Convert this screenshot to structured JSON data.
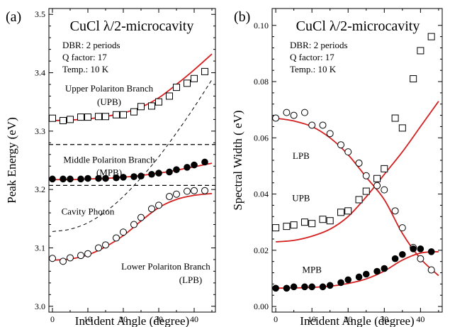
{
  "chart_data": [
    {
      "panel_label": "(a)",
      "type": "scatter",
      "title": "CuCl λ/2-microcavity",
      "info_lines": [
        "DBR: 2 periods",
        "Q factor: 17",
        "Temp.: 10 K"
      ],
      "xlabel": "Incident Angle (degree)",
      "ylabel": "Peak Energy (eV)",
      "xlim": [
        -1,
        46
      ],
      "ylim": [
        2.99,
        3.51
      ],
      "x_ticks": [
        0,
        10,
        20,
        30,
        40
      ],
      "y_ticks": [
        3.0,
        3.1,
        3.2,
        3.3,
        3.4,
        3.5
      ],
      "y_tick_labels": [
        "3.0",
        "3.1",
        "3.2",
        "3.3",
        "3.4",
        "3.5"
      ],
      "colors": {
        "fit": "#d42020",
        "marker": "#000000"
      },
      "series": [
        {
          "name": "Upper Polariton Branch (UPB)",
          "marker": "open-square",
          "x": [
            0,
            3,
            5,
            8,
            10,
            13,
            15,
            18,
            20,
            23,
            25,
            28,
            30,
            33,
            35,
            38,
            40,
            43
          ],
          "y": [
            3.322,
            3.318,
            3.32,
            3.324,
            3.324,
            3.325,
            3.325,
            3.328,
            3.328,
            3.333,
            3.342,
            3.343,
            3.35,
            3.36,
            3.375,
            3.382,
            3.39,
            3.402
          ]
        },
        {
          "name": "Middle Polariton Branch (MPB)",
          "marker": "filled-circle",
          "x": [
            0,
            3,
            5,
            8,
            10,
            13,
            15,
            18,
            20,
            23,
            25,
            28,
            30,
            33,
            35,
            38,
            40,
            43
          ],
          "y": [
            3.218,
            3.218,
            3.218,
            3.218,
            3.219,
            3.219,
            3.219,
            3.22,
            3.221,
            3.222,
            3.223,
            3.226,
            3.228,
            3.23,
            3.234,
            3.238,
            3.242,
            3.247
          ]
        },
        {
          "name": "Lower Polariton Branch (LPB)",
          "marker": "open-circle",
          "x": [
            0,
            3,
            5,
            8,
            10,
            13,
            15,
            18,
            20,
            23,
            25,
            28,
            30,
            33,
            35,
            38,
            40,
            43
          ],
          "y": [
            3.082,
            3.077,
            3.083,
            3.087,
            3.09,
            3.1,
            3.105,
            3.117,
            3.127,
            3.14,
            3.152,
            3.167,
            3.173,
            3.188,
            3.192,
            3.197,
            3.198,
            3.198
          ]
        }
      ],
      "fit_curves": [
        {
          "x": [
            0,
            5,
            10,
            15,
            20,
            25,
            30,
            35,
            40,
            45
          ],
          "y": [
            3.318,
            3.319,
            3.321,
            3.325,
            3.331,
            3.341,
            3.357,
            3.38,
            3.405,
            3.432
          ]
        },
        {
          "x": [
            0,
            5,
            10,
            15,
            20,
            25,
            30,
            35,
            40,
            45
          ],
          "y": [
            3.217,
            3.217,
            3.218,
            3.219,
            3.221,
            3.224,
            3.228,
            3.233,
            3.239,
            3.245
          ]
        },
        {
          "x": [
            0,
            5,
            10,
            15,
            20,
            25,
            30,
            35,
            40,
            45
          ],
          "y": [
            3.079,
            3.081,
            3.088,
            3.102,
            3.121,
            3.146,
            3.169,
            3.183,
            3.19,
            3.193
          ]
        }
      ],
      "dashed_curves": [
        {
          "name": "Cavity Photon",
          "x": [
            0,
            5,
            10,
            15,
            20,
            25,
            30,
            35,
            40,
            45
          ],
          "y": [
            3.128,
            3.132,
            3.143,
            3.162,
            3.188,
            3.22,
            3.256,
            3.297,
            3.341,
            3.388
          ]
        }
      ],
      "hlines": [
        3.277,
        3.207
      ],
      "annotations": [
        {
          "text": "Upper Polariton Branch",
          "x": 16,
          "y": 3.368
        },
        {
          "text": "(UPB)",
          "x": 16,
          "y": 3.345
        },
        {
          "text": "Middle Polariton Branch",
          "x": 16,
          "y": 3.246
        },
        {
          "text": "(MPB)",
          "x": 16,
          "y": 3.224
        },
        {
          "text": "Cavity Photon",
          "x": 10,
          "y": 3.157
        },
        {
          "text": "Lower Polariton Branch",
          "x": 32,
          "y": 3.063
        },
        {
          "text": "(LPB)",
          "x": 39,
          "y": 3.04
        }
      ]
    },
    {
      "panel_label": "(b)",
      "type": "scatter",
      "title": "CuCl λ/2-microcavity",
      "info_lines": [
        "DBR: 2 periods",
        "Q factor: 17",
        "Temp.: 10 K"
      ],
      "xlabel": "Incident Angle (degree)",
      "ylabel": "Spectral Width ( eV)",
      "xlim": [
        -1,
        46
      ],
      "ylim": [
        -0.002,
        0.106
      ],
      "x_ticks": [
        0,
        10,
        20,
        30,
        40
      ],
      "y_ticks": [
        0,
        0.02,
        0.04,
        0.06,
        0.08,
        0.1
      ],
      "y_tick_labels": [
        "0.00",
        "0.02",
        "0.04",
        "0.06",
        "0.08",
        "0.10"
      ],
      "colors": {
        "fit": "#d42020",
        "marker": "#000000"
      },
      "series": [
        {
          "name": "UPB",
          "marker": "open-square",
          "x": [
            0,
            3,
            5,
            8,
            10,
            13,
            15,
            18,
            20,
            23,
            25,
            28,
            30,
            33,
            35,
            38,
            40,
            43
          ],
          "y": [
            0.028,
            0.0285,
            0.029,
            0.03,
            0.0295,
            0.031,
            0.0305,
            0.0335,
            0.034,
            0.038,
            0.041,
            0.0455,
            0.049,
            0.067,
            0.0635,
            0.081,
            0.091,
            0.096
          ]
        },
        {
          "name": "LPB",
          "marker": "open-circle",
          "x": [
            0,
            3,
            5,
            8,
            10,
            13,
            15,
            18,
            20,
            23,
            25,
            28,
            30,
            33,
            35,
            38,
            40,
            43
          ],
          "y": [
            0.067,
            0.069,
            0.068,
            0.069,
            0.0645,
            0.0645,
            0.0615,
            0.0575,
            0.055,
            0.051,
            0.0465,
            0.043,
            0.0415,
            0.034,
            0.028,
            0.021,
            0.017,
            0.013
          ]
        },
        {
          "name": "MPB",
          "marker": "filled-circle",
          "x": [
            0,
            3,
            5,
            8,
            10,
            13,
            15,
            18,
            20,
            23,
            25,
            28,
            30,
            33,
            35,
            38,
            40,
            43
          ],
          "y": [
            0.0065,
            0.0065,
            0.007,
            0.007,
            0.007,
            0.007,
            0.0075,
            0.0085,
            0.0095,
            0.0105,
            0.0115,
            0.0125,
            0.0135,
            0.017,
            0.0185,
            0.0205,
            0.0205,
            0.0195
          ]
        }
      ],
      "fit_curves": [
        {
          "x": [
            0,
            5,
            10,
            15,
            20,
            25,
            30,
            35,
            40,
            45
          ],
          "y": [
            0.023,
            0.0235,
            0.025,
            0.0275,
            0.032,
            0.039,
            0.047,
            0.055,
            0.064,
            0.073
          ]
        },
        {
          "x": [
            0,
            5,
            10,
            15,
            20,
            25,
            30,
            35,
            40,
            45
          ],
          "y": [
            0.067,
            0.066,
            0.064,
            0.06,
            0.054,
            0.046,
            0.038,
            0.026,
            0.017,
            0.011
          ]
        },
        {
          "x": [
            0,
            5,
            10,
            15,
            20,
            25,
            30,
            35,
            40,
            45
          ],
          "y": [
            0.0065,
            0.0066,
            0.0068,
            0.0072,
            0.0082,
            0.0098,
            0.0126,
            0.0165,
            0.019,
            0.0195
          ]
        }
      ],
      "dashed_curves": [],
      "hlines": [],
      "annotations": [
        {
          "text": "LPB",
          "x": 7,
          "y": 0.0525
        },
        {
          "text": "UPB",
          "x": 7,
          "y": 0.0375
        },
        {
          "text": "MPB",
          "x": 10,
          "y": 0.012
        }
      ]
    }
  ]
}
